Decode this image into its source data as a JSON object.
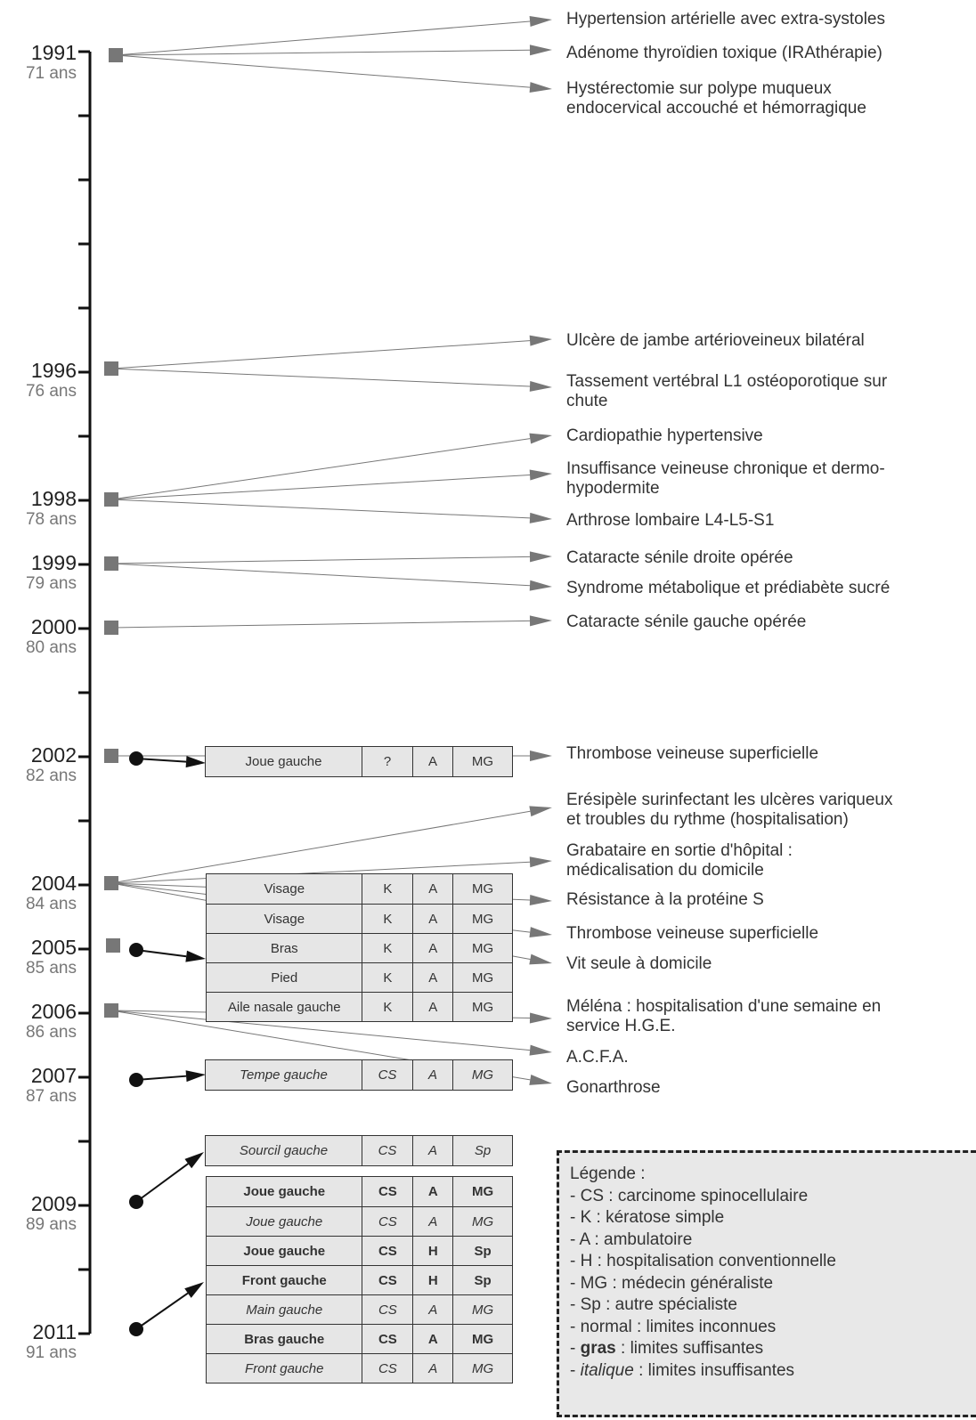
{
  "years": [
    {
      "year": "1991",
      "age": "71 ans"
    },
    {
      "year": "1996",
      "age": "76 ans"
    },
    {
      "year": "1998",
      "age": "78 ans"
    },
    {
      "year": "1999",
      "age": "79 ans"
    },
    {
      "year": "2000",
      "age": "80 ans"
    },
    {
      "year": "2002",
      "age": "82 ans"
    },
    {
      "year": "2004",
      "age": "84 ans"
    },
    {
      "year": "2005",
      "age": "85 ans"
    },
    {
      "year": "2006",
      "age": "86 ans"
    },
    {
      "year": "2007",
      "age": "87 ans"
    },
    {
      "year": "2009",
      "age": "89 ans"
    },
    {
      "year": "2011",
      "age": "91 ans"
    }
  ],
  "events": [
    "Hypertension artérielle avec extra-systoles",
    "Adénome thyroïdien toxique (IRAthérapie)",
    "Hystérectomie sur polype muqueux\nendocervical accouché et hémorragique",
    "Ulcère de jambe artérioveineux bilatéral",
    "Tassement vertébral L1 ostéoporotique sur\nchute",
    "Cardiopathie hypertensive",
    "Insuffisance veineuse chronique et dermo-\nhypodermite",
    "Arthrose lombaire L4-L5-S1",
    "Cataracte sénile droite opérée",
    "Syndrome métabolique et prédiabète sucré",
    "Cataracte sénile gauche opérée",
    "Thrombose veineuse superficielle",
    "Erésipèle surinfectant les ulcères variqueux\net troubles du rythme (hospitalisation)",
    "Grabataire en sortie d'hôpital :\nmédicalisation du domicile",
    "Résistance à la protéine S",
    "Thrombose veineuse superficielle",
    "Vit seule à domicile",
    "Méléna : hospitalisation d'une semaine en\nservice H.G.E.",
    "A.C.F.A.",
    "Gonarthrose"
  ],
  "lesions": {
    "r2002": {
      "site": "Joue gauche",
      "type": "?",
      "mode": "A",
      "doc": "MG",
      "style": "normal"
    },
    "g2004": [
      {
        "site": "Visage",
        "type": "K",
        "mode": "A",
        "doc": "MG",
        "style": "normal"
      },
      {
        "site": "Visage",
        "type": "K",
        "mode": "A",
        "doc": "MG",
        "style": "normal"
      },
      {
        "site": "Bras",
        "type": "K",
        "mode": "A",
        "doc": "MG",
        "style": "normal"
      },
      {
        "site": "Pied",
        "type": "K",
        "mode": "A",
        "doc": "MG",
        "style": "normal"
      },
      {
        "site": "Aile nasale gauche",
        "type": "K",
        "mode": "A",
        "doc": "MG",
        "style": "normal"
      }
    ],
    "r2007": {
      "site": "Tempe gauche",
      "type": "CS",
      "mode": "A",
      "doc": "MG",
      "style": "italic"
    },
    "r2009a": {
      "site": "Sourcil gauche",
      "type": "CS",
      "mode": "A",
      "doc": "Sp",
      "style": "italic"
    },
    "g2009": [
      {
        "site": "Joue gauche",
        "type": "CS",
        "mode": "A",
        "doc": "MG",
        "style": "bold"
      },
      {
        "site": "Joue gauche",
        "type": "CS",
        "mode": "A",
        "doc": "MG",
        "style": "italic"
      },
      {
        "site": "Joue gauche",
        "type": "CS",
        "mode": "H",
        "doc": "Sp",
        "style": "bold"
      },
      {
        "site": "Front gauche",
        "type": "CS",
        "mode": "H",
        "doc": "Sp",
        "style": "bold"
      },
      {
        "site": "Main gauche",
        "type": "CS",
        "mode": "A",
        "doc": "MG",
        "style": "italic"
      },
      {
        "site": "Bras gauche",
        "type": "CS",
        "mode": "A",
        "doc": "MG",
        "style": "bold"
      },
      {
        "site": "Front gauche",
        "type": "CS",
        "mode": "A",
        "doc": "MG",
        "style": "italic"
      }
    ]
  },
  "legend": {
    "title": "Légende :",
    "items": [
      {
        "pre": "- CS : carcinome spinocellulaire",
        "em": "",
        "post": ""
      },
      {
        "pre": "- K : kératose simple",
        "em": "",
        "post": ""
      },
      {
        "pre": "- A : ambulatoire",
        "em": "",
        "post": ""
      },
      {
        "pre": "- H : hospitalisation conventionnelle",
        "em": "",
        "post": ""
      },
      {
        "pre": "- MG : médecin généraliste",
        "em": "",
        "post": ""
      },
      {
        "pre": "- Sp : autre spécialiste",
        "em": "",
        "post": ""
      },
      {
        "pre": "- normal : limites inconnues",
        "em": "",
        "post": ""
      },
      {
        "pre": "- ",
        "em": "gras",
        "post": " : limites suffisantes",
        "emStyle": "bold"
      },
      {
        "pre": "- ",
        "em": "italique",
        "post": " : limites insuffisantes",
        "emStyle": "italic"
      }
    ]
  },
  "colors": {
    "axis": "#111111",
    "event_arrow": "#777777",
    "lesion_arrow": "#111111",
    "cell_bg": "#e6e6e6",
    "legend_bg": "#e8e8e8"
  }
}
